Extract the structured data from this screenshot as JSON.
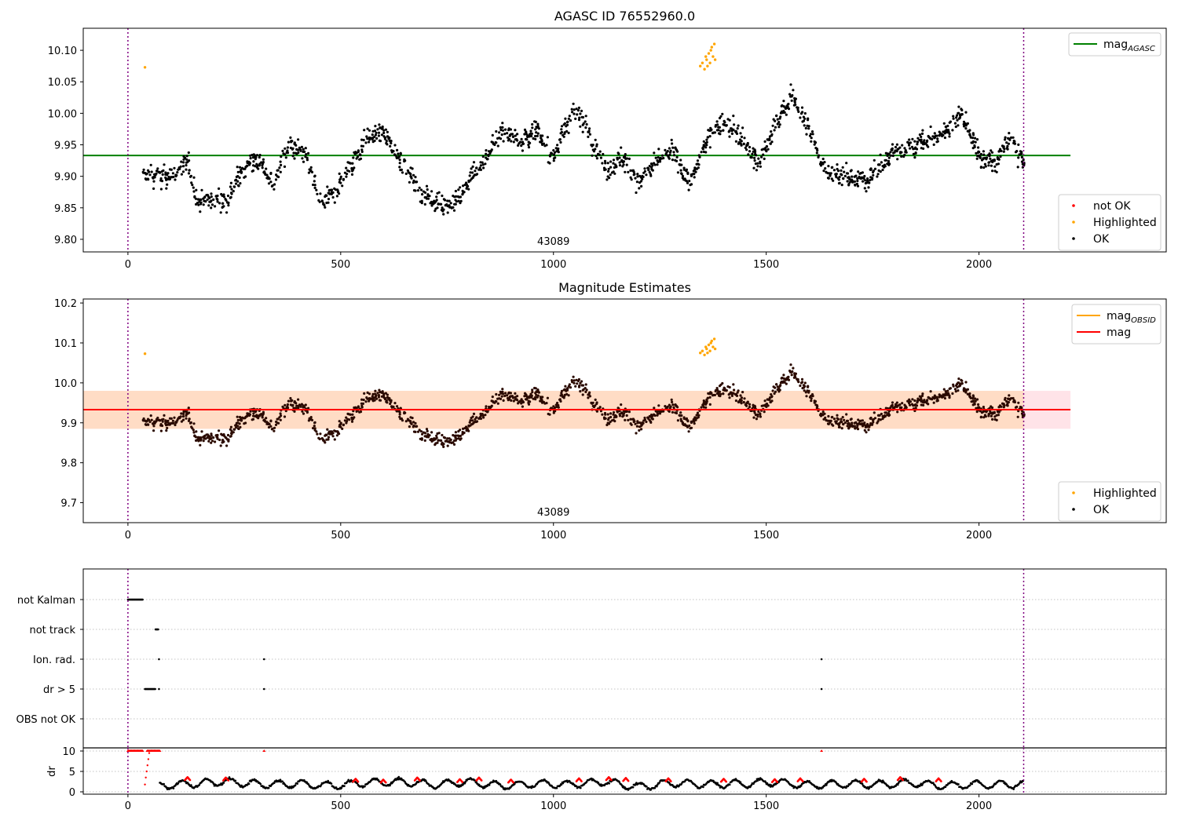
{
  "colors": {
    "ok": "#000000",
    "not_ok": "#ff0000",
    "highlighted": "#ffa500",
    "agasc_line": "#008000",
    "mag_line": "#ff0000",
    "obsid_line": "#ffa500",
    "band_fill": "#ffc0cb",
    "band_fill2": "#ffdab9",
    "vline": "#800080"
  },
  "chart_data": [
    {
      "type": "scatter",
      "title": "AGASC ID 76552960.0",
      "xlim": [
        -105,
        2440
      ],
      "ylim": [
        9.78,
        10.135
      ],
      "xticks": [
        0,
        500,
        1000,
        1500,
        2000
      ],
      "yticks": [
        9.8,
        9.85,
        9.9,
        9.95,
        10.0,
        10.05,
        10.1
      ],
      "yticklabels": [
        "9.80",
        "9.85",
        "9.90",
        "9.95",
        "10.00",
        "10.05",
        "10.10"
      ],
      "obsid_label": "43089",
      "obsid_label_x": 1000,
      "vlines": [
        0,
        2105
      ],
      "hline": {
        "name": "mag",
        "subscript": "AGASC",
        "y": 9.933,
        "x_range": [
          -105,
          2215
        ]
      },
      "legend_top": [
        {
          "label": "mag",
          "subscript": "AGASC",
          "color": "#008000"
        }
      ],
      "legend_bottom": [
        {
          "label": "not OK",
          "color": "#ff0000"
        },
        {
          "label": "Highlighted",
          "color": "#ffa500"
        },
        {
          "label": "OK",
          "color": "#000000"
        }
      ],
      "series": [
        {
          "name": "OK",
          "color": "#000000",
          "x_range": [
            35,
            2105
          ],
          "y_curve": [
            [
              35,
              9.9
            ],
            [
              60,
              9.9
            ],
            [
              100,
              9.9
            ],
            [
              140,
              9.92
            ],
            [
              165,
              9.86
            ],
            [
              230,
              9.86
            ],
            [
              270,
              9.91
            ],
            [
              300,
              9.93
            ],
            [
              340,
              9.89
            ],
            [
              380,
              9.95
            ],
            [
              420,
              9.93
            ],
            [
              450,
              9.85
            ],
            [
              480,
              9.87
            ],
            [
              520,
              9.91
            ],
            [
              560,
              9.96
            ],
            [
              600,
              9.97
            ],
            [
              640,
              9.93
            ],
            [
              680,
              9.88
            ],
            [
              720,
              9.86
            ],
            [
              760,
              9.85
            ],
            [
              800,
              9.89
            ],
            [
              840,
              9.93
            ],
            [
              880,
              9.97
            ],
            [
              920,
              9.96
            ],
            [
              960,
              9.97
            ],
            [
              1000,
              9.93
            ],
            [
              1040,
              10.0
            ],
            [
              1080,
              9.98
            ],
            [
              1120,
              9.91
            ],
            [
              1160,
              9.93
            ],
            [
              1200,
              9.89
            ],
            [
              1240,
              9.92
            ],
            [
              1280,
              9.94
            ],
            [
              1320,
              9.89
            ],
            [
              1360,
              9.96
            ],
            [
              1400,
              9.99
            ],
            [
              1440,
              9.96
            ],
            [
              1480,
              9.92
            ],
            [
              1520,
              9.98
            ],
            [
              1560,
              10.03
            ],
            [
              1600,
              9.97
            ],
            [
              1640,
              9.91
            ],
            [
              1680,
              9.9
            ],
            [
              1720,
              9.89
            ],
            [
              1760,
              9.91
            ],
            [
              1800,
              9.94
            ],
            [
              1840,
              9.95
            ],
            [
              1880,
              9.96
            ],
            [
              1920,
              9.97
            ],
            [
              1960,
              10.0
            ],
            [
              2000,
              9.93
            ],
            [
              2040,
              9.92
            ],
            [
              2070,
              9.96
            ],
            [
              2105,
              9.92
            ]
          ],
          "scatter_spread": 0.022
        },
        {
          "name": "Highlighted",
          "color": "#ffa500",
          "points": [
            [
              40,
              10.073
            ],
            [
              1345,
              10.075
            ],
            [
              1350,
              10.08
            ],
            [
              1355,
              10.07
            ],
            [
              1358,
              10.09
            ],
            [
              1360,
              10.085
            ],
            [
              1362,
              10.075
            ],
            [
              1365,
              10.095
            ],
            [
              1368,
              10.08
            ],
            [
              1370,
              10.1
            ],
            [
              1372,
              10.105
            ],
            [
              1375,
              10.09
            ],
            [
              1378,
              10.11
            ],
            [
              1380,
              10.085
            ]
          ]
        },
        {
          "name": "not OK",
          "color": "#ff0000",
          "points": []
        }
      ]
    },
    {
      "type": "scatter",
      "title": "Magnitude Estimates",
      "xlim": [
        -105,
        2440
      ],
      "ylim": [
        9.65,
        10.21
      ],
      "xticks": [
        0,
        500,
        1000,
        1500,
        2000
      ],
      "yticks": [
        9.7,
        9.8,
        9.9,
        10.0,
        10.1,
        10.2
      ],
      "yticklabels": [
        "9.7",
        "9.8",
        "9.9",
        "10.0",
        "10.1",
        "10.2"
      ],
      "obsid_label": "43089",
      "obsid_label_x": 1000,
      "vlines": [
        0,
        2105
      ],
      "band": {
        "y_low": 9.885,
        "y_high": 9.98,
        "x_range": [
          -105,
          2215
        ]
      },
      "band2": {
        "y_low": 9.885,
        "y_high": 9.98,
        "x_range": [
          -105,
          2105
        ]
      },
      "hline": {
        "name": "mag",
        "y": 9.933,
        "x_range": [
          -105,
          2215
        ]
      },
      "legend_top": [
        {
          "label": "mag",
          "subscript": "OBSID",
          "color": "#ffa500"
        },
        {
          "label": "mag",
          "subscript": "",
          "color": "#ff0000"
        }
      ],
      "legend_bottom": [
        {
          "label": "Highlighted",
          "color": "#ffa500"
        },
        {
          "label": "OK",
          "color": "#000000"
        }
      ]
    },
    {
      "type": "scatter",
      "title": "",
      "xlim": [
        -105,
        2440
      ],
      "xticks": [
        0,
        500,
        1000,
        1500,
        2000
      ],
      "categories": [
        "not Kalman",
        "not track",
        "Ion. rad.",
        "dr > 5",
        "OBS not OK"
      ],
      "vlines": [
        0,
        2105
      ],
      "flags": [
        {
          "category": "not Kalman",
          "x_ranges": [
            [
              0,
              35
            ]
          ],
          "points": []
        },
        {
          "category": "not track",
          "x_ranges": [
            [
              65,
              72
            ]
          ],
          "points": []
        },
        {
          "category": "Ion. rad.",
          "x_ranges": [],
          "points": [
            73,
            320,
            1630
          ]
        },
        {
          "category": "dr > 5",
          "x_ranges": [
            [
              40,
              65
            ]
          ],
          "points": [
            73,
            320,
            1630
          ]
        },
        {
          "category": "OBS not OK",
          "x_ranges": [],
          "points": []
        }
      ],
      "dr_panel": {
        "ylabel": "dr",
        "ylim": [
          0,
          10
        ],
        "yticks": [
          0,
          5,
          10
        ],
        "clipped_red_x": [
          [
            0,
            35
          ],
          [
            45,
            75
          ]
        ],
        "clipped_red_points": [
          320,
          1630
        ],
        "rise_points": [
          [
            40,
            1.8
          ],
          [
            42,
            3.5
          ],
          [
            44,
            5.0
          ],
          [
            46,
            6.5
          ],
          [
            48,
            8.0
          ],
          [
            50,
            9.5
          ]
        ],
        "dr_curve": [
          [
            75,
            1.5
          ],
          [
            150,
            2.0
          ],
          [
            230,
            2.5
          ],
          [
            320,
            1.8
          ],
          [
            400,
            2.0
          ],
          [
            480,
            1.5
          ],
          [
            560,
            2.2
          ],
          [
            640,
            2.5
          ],
          [
            720,
            1.8
          ],
          [
            800,
            2.4
          ],
          [
            880,
            1.5
          ],
          [
            960,
            2.0
          ],
          [
            1040,
            1.8
          ],
          [
            1120,
            2.5
          ],
          [
            1200,
            1.2
          ],
          [
            1280,
            2.2
          ],
          [
            1360,
            1.8
          ],
          [
            1440,
            2.0
          ],
          [
            1520,
            2.4
          ],
          [
            1600,
            1.6
          ],
          [
            1680,
            2.0
          ],
          [
            1760,
            1.8
          ],
          [
            1840,
            2.2
          ],
          [
            1920,
            1.5
          ],
          [
            2000,
            1.8
          ],
          [
            2105,
            1.8
          ]
        ],
        "red_points": [
          [
            140,
            3.6
          ],
          [
            230,
            3.5
          ],
          [
            535,
            3.2
          ],
          [
            600,
            3.0
          ],
          [
            680,
            3.5
          ],
          [
            780,
            3.1
          ],
          [
            825,
            3.5
          ],
          [
            900,
            3.0
          ],
          [
            1060,
            3.3
          ],
          [
            1130,
            3.6
          ],
          [
            1170,
            3.4
          ],
          [
            1270,
            3.3
          ],
          [
            1400,
            3.2
          ],
          [
            1520,
            3.1
          ],
          [
            1580,
            3.3
          ],
          [
            1730,
            3.2
          ],
          [
            1815,
            3.6
          ],
          [
            1905,
            3.3
          ]
        ]
      },
      "xticks_bottom": [
        0,
        500,
        1000,
        1500,
        2000
      ]
    }
  ]
}
